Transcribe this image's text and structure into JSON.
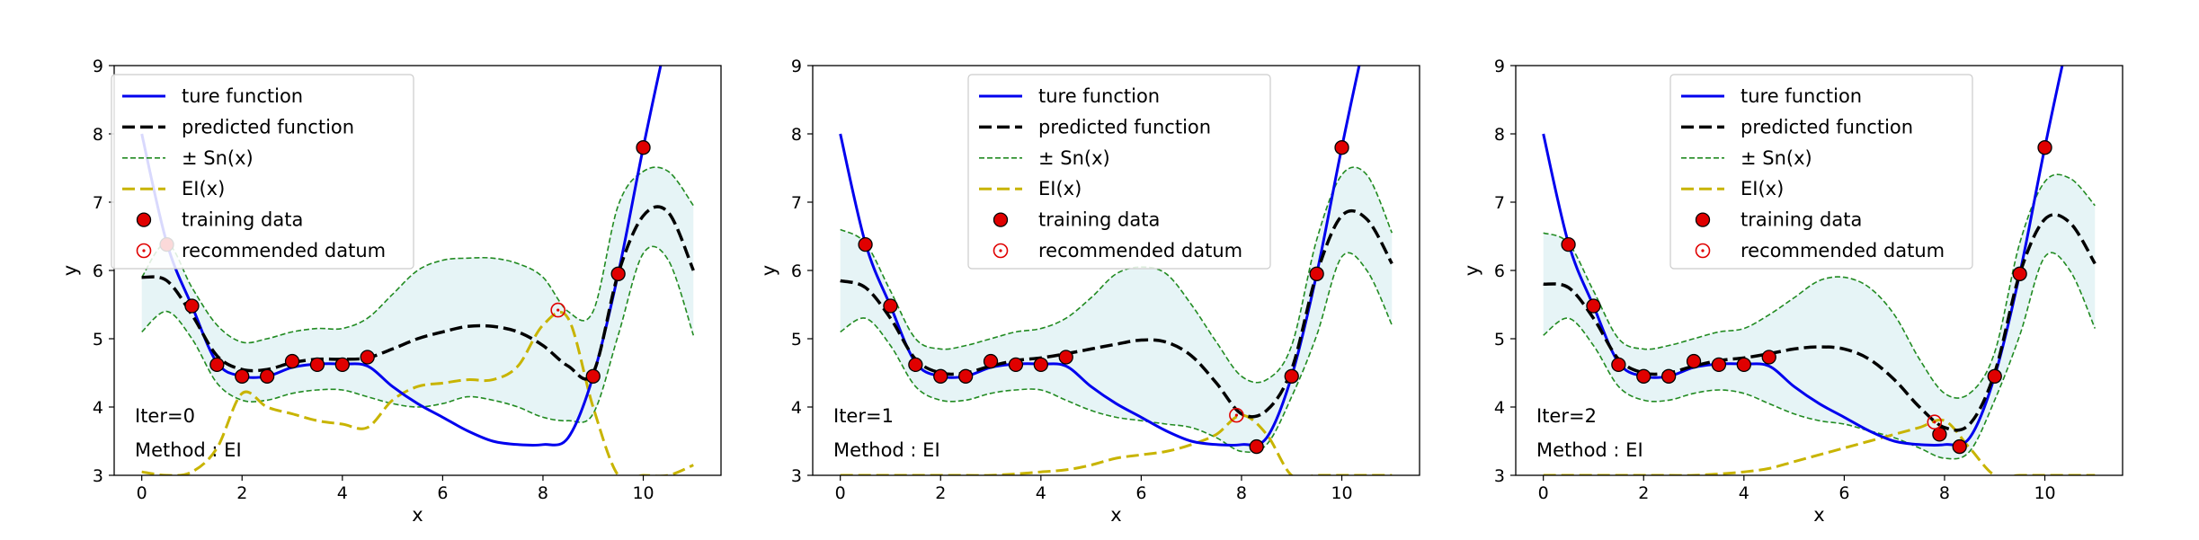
{
  "chart_data": [
    {
      "type": "line",
      "xlabel": "x",
      "ylabel": "y",
      "xlim": [
        -0.55,
        11.55
      ],
      "ylim": [
        3,
        9
      ],
      "xticks": [
        0,
        2,
        4,
        6,
        8,
        10
      ],
      "yticks": [
        3,
        4,
        5,
        6,
        7,
        8,
        9
      ],
      "grid": false,
      "legend_position": "top-left",
      "legend": [
        "ture function",
        "predicted function",
        "± Sn(x)",
        "EI(x)",
        "training data",
        "recommended datum"
      ],
      "annotations": [
        "Iter=0",
        "Method : EI"
      ],
      "colors": {
        "true": "#0000ee",
        "pred": "#000000",
        "band": "#228b22",
        "fill": "#e6f4f6",
        "ei": "#c8b400",
        "point": "#e00000"
      },
      "x": [
        0,
        0.5,
        1,
        1.5,
        2,
        2.5,
        3,
        3.5,
        4,
        4.5,
        5,
        5.5,
        6,
        6.5,
        7,
        7.5,
        8,
        8.5,
        9,
        9.5,
        10,
        10.5,
        11
      ],
      "series": [
        {
          "name": "ture function",
          "values": [
            8.0,
            6.4,
            5.48,
            4.65,
            4.45,
            4.45,
            4.58,
            4.63,
            4.63,
            4.6,
            4.3,
            4.05,
            3.85,
            3.65,
            3.5,
            3.45,
            3.45,
            3.55,
            4.45,
            5.95,
            7.8,
            9.5,
            11.0
          ]
        },
        {
          "name": "predicted function",
          "values": [
            5.9,
            5.85,
            5.35,
            4.75,
            4.55,
            4.55,
            4.65,
            4.7,
            4.7,
            4.72,
            4.85,
            5.0,
            5.1,
            5.18,
            5.18,
            5.1,
            4.9,
            4.6,
            4.5,
            5.95,
            6.8,
            6.85,
            6.0
          ]
        },
        {
          "name": "Sn upper",
          "values": [
            5.9,
            6.4,
            5.75,
            5.2,
            4.95,
            5.0,
            5.1,
            5.15,
            5.15,
            5.3,
            5.65,
            6.0,
            6.15,
            6.18,
            6.18,
            6.1,
            5.9,
            5.4,
            5.4,
            6.95,
            7.45,
            7.45,
            6.95
          ]
        },
        {
          "name": "Sn lower",
          "values": [
            5.1,
            5.4,
            5.0,
            4.35,
            4.1,
            4.1,
            4.2,
            4.25,
            4.25,
            4.15,
            4.05,
            4.0,
            4.05,
            4.15,
            4.1,
            4.0,
            3.85,
            3.8,
            3.9,
            5.05,
            6.25,
            6.15,
            5.05
          ]
        },
        {
          "name": "EI(x)",
          "values": [
            3.05,
            3.0,
            3.05,
            3.4,
            4.2,
            4.0,
            3.9,
            3.8,
            3.75,
            3.7,
            4.1,
            4.3,
            4.35,
            4.4,
            4.4,
            4.6,
            5.2,
            5.3,
            4.0,
            3.0,
            3.0,
            3.0,
            3.15
          ]
        }
      ],
      "training_data": {
        "x": [
          0.5,
          1,
          1.5,
          2,
          2.5,
          3,
          3.5,
          4,
          4.5,
          9,
          9.5,
          10
        ],
        "y": [
          6.38,
          5.48,
          4.62,
          4.45,
          4.45,
          4.67,
          4.62,
          4.62,
          4.73,
          4.45,
          5.95,
          7.8
        ]
      },
      "recommended_datum": {
        "x": 8.3,
        "y": 5.42
      }
    },
    {
      "type": "line",
      "xlabel": "x",
      "ylabel": "y",
      "xlim": [
        -0.55,
        11.55
      ],
      "ylim": [
        3,
        9
      ],
      "xticks": [
        0,
        2,
        4,
        6,
        8,
        10
      ],
      "yticks": [
        3,
        4,
        5,
        6,
        7,
        8,
        9
      ],
      "grid": false,
      "legend_position": "top-center",
      "legend": [
        "ture function",
        "predicted function",
        "± Sn(x)",
        "EI(x)",
        "training data",
        "recommended datum"
      ],
      "annotations": [
        "Iter=1",
        "Method : EI"
      ],
      "colors": {
        "true": "#0000ee",
        "pred": "#000000",
        "band": "#228b22",
        "fill": "#e6f4f6",
        "ei": "#c8b400",
        "point": "#e00000"
      },
      "x": [
        0,
        0.5,
        1,
        1.5,
        2,
        2.5,
        3,
        3.5,
        4,
        4.5,
        5,
        5.5,
        6,
        6.5,
        7,
        7.5,
        8,
        8.5,
        9,
        9.5,
        10,
        10.5,
        11
      ],
      "series": [
        {
          "name": "ture function",
          "values": [
            8.0,
            6.4,
            5.48,
            4.65,
            4.45,
            4.45,
            4.58,
            4.63,
            4.63,
            4.6,
            4.3,
            4.05,
            3.85,
            3.65,
            3.5,
            3.45,
            3.45,
            3.55,
            4.45,
            5.95,
            7.8,
            9.5,
            11.0
          ]
        },
        {
          "name": "predicted function",
          "values": [
            5.85,
            5.75,
            5.3,
            4.7,
            4.5,
            4.5,
            4.6,
            4.68,
            4.72,
            4.78,
            4.85,
            4.92,
            4.98,
            4.95,
            4.75,
            4.35,
            3.9,
            3.95,
            4.55,
            5.95,
            6.8,
            6.75,
            6.1
          ]
        },
        {
          "name": "Sn upper",
          "values": [
            6.6,
            6.4,
            5.7,
            5.0,
            4.85,
            4.9,
            5.0,
            5.1,
            5.15,
            5.3,
            5.6,
            5.95,
            6.05,
            5.95,
            5.5,
            4.95,
            4.45,
            4.4,
            4.9,
            6.45,
            7.4,
            7.4,
            6.55
          ]
        },
        {
          "name": "Sn lower",
          "values": [
            5.1,
            5.3,
            4.9,
            4.3,
            4.1,
            4.1,
            4.2,
            4.25,
            4.25,
            4.1,
            3.95,
            3.85,
            3.8,
            3.75,
            3.7,
            3.55,
            3.35,
            3.45,
            4.15,
            5.05,
            6.2,
            6.0,
            5.2
          ]
        },
        {
          "name": "EI(x)",
          "values": [
            3.0,
            3.0,
            3.0,
            3.0,
            3.0,
            3.0,
            3.0,
            3.02,
            3.05,
            3.08,
            3.15,
            3.25,
            3.3,
            3.35,
            3.45,
            3.6,
            3.88,
            3.6,
            3.0,
            3.0,
            3.0,
            3.0,
            3.0
          ]
        }
      ],
      "training_data": {
        "x": [
          0.5,
          1,
          1.5,
          2,
          2.5,
          3,
          3.5,
          4,
          4.5,
          8.3,
          9,
          9.5,
          10
        ],
        "y": [
          6.38,
          5.48,
          4.62,
          4.45,
          4.45,
          4.67,
          4.62,
          4.62,
          4.73,
          3.42,
          4.45,
          5.95,
          7.8
        ]
      },
      "recommended_datum": {
        "x": 7.9,
        "y": 3.88
      }
    },
    {
      "type": "line",
      "xlabel": "x",
      "ylabel": "y",
      "xlim": [
        -0.55,
        11.55
      ],
      "ylim": [
        3,
        9
      ],
      "xticks": [
        0,
        2,
        4,
        6,
        8,
        10
      ],
      "yticks": [
        3,
        4,
        5,
        6,
        7,
        8,
        9
      ],
      "grid": false,
      "legend_position": "top-center",
      "legend": [
        "ture function",
        "predicted function",
        "± Sn(x)",
        "EI(x)",
        "training data",
        "recommended datum"
      ],
      "annotations": [
        "Iter=2",
        "Method : EI"
      ],
      "colors": {
        "true": "#0000ee",
        "pred": "#000000",
        "band": "#228b22",
        "fill": "#e6f4f6",
        "ei": "#c8b400",
        "point": "#e00000"
      },
      "x": [
        0,
        0.5,
        1,
        1.5,
        2,
        2.5,
        3,
        3.5,
        4,
        4.5,
        5,
        5.5,
        6,
        6.5,
        7,
        7.5,
        8,
        8.5,
        9,
        9.5,
        10,
        10.5,
        11
      ],
      "series": [
        {
          "name": "ture function",
          "values": [
            8.0,
            6.4,
            5.48,
            4.65,
            4.45,
            4.45,
            4.58,
            4.63,
            4.63,
            4.6,
            4.3,
            4.05,
            3.85,
            3.65,
            3.5,
            3.45,
            3.45,
            3.55,
            4.45,
            5.95,
            7.8,
            9.5,
            11.0
          ]
        },
        {
          "name": "predicted function",
          "values": [
            5.8,
            5.75,
            5.3,
            4.7,
            4.5,
            4.5,
            4.6,
            4.68,
            4.72,
            4.78,
            4.85,
            4.88,
            4.85,
            4.7,
            4.4,
            4.0,
            3.7,
            3.75,
            4.5,
            5.95,
            6.75,
            6.7,
            6.1
          ]
        },
        {
          "name": "Sn upper",
          "values": [
            6.55,
            6.4,
            5.7,
            5.0,
            4.85,
            4.9,
            5.0,
            5.1,
            5.15,
            5.35,
            5.6,
            5.85,
            5.9,
            5.75,
            5.35,
            4.7,
            4.2,
            4.2,
            4.8,
            6.4,
            7.3,
            7.35,
            6.95
          ]
        },
        {
          "name": "Sn lower",
          "values": [
            5.05,
            5.3,
            4.9,
            4.3,
            4.1,
            4.1,
            4.2,
            4.25,
            4.2,
            4.05,
            3.9,
            3.8,
            3.75,
            3.65,
            3.55,
            3.4,
            3.25,
            3.35,
            4.1,
            5.05,
            6.2,
            6.0,
            5.15
          ]
        },
        {
          "name": "EI(x)",
          "values": [
            3.0,
            3.0,
            3.0,
            3.0,
            3.0,
            3.0,
            3.0,
            3.02,
            3.05,
            3.1,
            3.2,
            3.3,
            3.4,
            3.5,
            3.6,
            3.7,
            3.8,
            3.4,
            3.0,
            3.0,
            3.0,
            3.0,
            3.0
          ]
        }
      ],
      "training_data": {
        "x": [
          0.5,
          1,
          1.5,
          2,
          2.5,
          3,
          3.5,
          4,
          4.5,
          7.9,
          8.3,
          9,
          9.5,
          10
        ],
        "y": [
          6.38,
          5.48,
          4.62,
          4.45,
          4.45,
          4.67,
          4.62,
          4.62,
          4.73,
          3.6,
          3.42,
          4.45,
          5.95,
          7.8
        ]
      },
      "recommended_datum": {
        "x": 7.8,
        "y": 3.78
      }
    }
  ]
}
